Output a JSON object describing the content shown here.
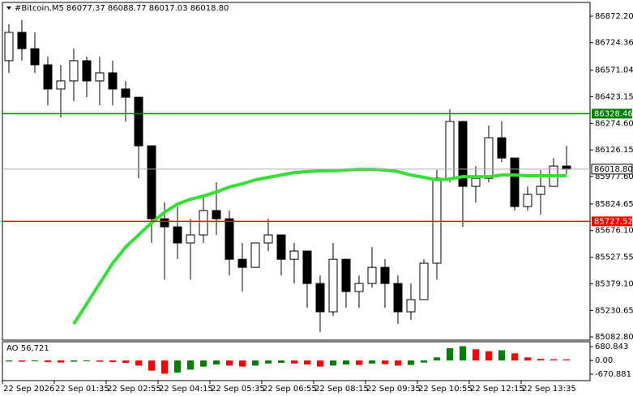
{
  "chart_data": [
    {
      "type": "candlestick",
      "title": "#Bitcoin,M5  86077.37 86088.77 86017.03 86018.80",
      "categories": [
        "22 Sep 2026",
        null,
        null,
        null,
        "22 Sep 01:35",
        null,
        null,
        null,
        "22 Sep 02:55",
        null,
        null,
        null,
        "22 Sep 04:15",
        null,
        null,
        null,
        "22 Sep 05:35",
        null,
        null,
        null,
        "22 Sep 06:55",
        null,
        null,
        null,
        "22 Sep 08:15",
        null,
        null,
        null,
        "22 Sep 09:35",
        null,
        null,
        null,
        "22 Sep 10:55",
        null,
        null,
        null,
        "22 Sep 12:15",
        null,
        null,
        null,
        "22 Sep 13:35",
        null,
        null,
        null
      ],
      "open": [
        86624,
        86782,
        86691,
        86601,
        86466,
        86511,
        86624,
        86511,
        86556,
        86466,
        86420,
        86149,
        85742,
        85697,
        85607,
        85652,
        85788,
        85742,
        85516,
        85471,
        85607,
        85652,
        85516,
        85562,
        85381,
        85223,
        85516,
        85336,
        85381,
        85471,
        85381,
        85223,
        85291,
        85494,
        85968,
        86285,
        85923,
        85968,
        86194,
        86081,
        85810,
        85878,
        85923,
        86036
      ],
      "high": [
        86827,
        86850,
        86782,
        86646,
        86601,
        86691,
        86646,
        86646,
        86624,
        86511,
        86420,
        86149,
        85833,
        85810,
        85742,
        85878,
        85946,
        85788,
        85607,
        85607,
        85742,
        85652,
        85607,
        85562,
        85426,
        85607,
        85516,
        85426,
        85584,
        85516,
        85426,
        85381,
        85516,
        86014,
        86352,
        86285,
        86036,
        86262,
        86285,
        86081,
        85923,
        86014,
        86081,
        86149
      ],
      "low": [
        86556,
        86624,
        86556,
        86375,
        86307,
        86398,
        86420,
        86375,
        86375,
        86285,
        85968,
        85607,
        85403,
        85516,
        85403,
        85607,
        85652,
        85426,
        85336,
        85471,
        85562,
        85426,
        85381,
        85245,
        85110,
        85200,
        85245,
        85245,
        85358,
        85245,
        85155,
        85178,
        85291,
        85403,
        85946,
        85697,
        85833,
        85946,
        86059,
        85788,
        85788,
        85765,
        85923,
        85991
      ],
      "close": [
        86782,
        86691,
        86601,
        86466,
        86511,
        86624,
        86511,
        86556,
        86466,
        86420,
        86149,
        85742,
        85697,
        85607,
        85652,
        85788,
        85742,
        85516,
        85471,
        85607,
        85652,
        85516,
        85562,
        85381,
        85223,
        85516,
        85336,
        85381,
        85471,
        85381,
        85223,
        85291,
        85494,
        85968,
        86285,
        85923,
        85968,
        86194,
        86081,
        85810,
        85878,
        85923,
        86036,
        86018.8
      ],
      "up_color": "#ffffff",
      "down_color": "#000000",
      "series": [
        {
          "color": "#33e033",
          "values": [
            null,
            null,
            null,
            null,
            null,
            85155,
            85268,
            85381,
            85494,
            85584,
            85652,
            85720,
            85778,
            85824,
            85851,
            85869,
            85892,
            85919,
            85937,
            85959,
            85973,
            85986,
            86000,
            86005,
            86009,
            86009,
            86014,
            86018,
            86018,
            86014,
            86005,
            85986,
            85973,
            85959,
            85964,
            85977,
            85977,
            85977,
            85986,
            85986,
            85982,
            85982,
            85982,
            85982
          ]
        }
      ],
      "levels": [
        {
          "value": 86328.46,
          "color": "#008000"
        },
        {
          "value": 85727.52,
          "color": "#ff0000"
        }
      ],
      "current": {
        "value": 86018.8,
        "label": "86018.80"
      },
      "ylim": [
        85065,
        86949
      ],
      "yticks": [
        {
          "value": 86872.2,
          "label": "86872.20"
        },
        {
          "value": 86724.36,
          "label": "86724.36"
        },
        {
          "value": 86571.04,
          "label": "86571.04"
        },
        {
          "value": 86423.15,
          "label": "86423.15"
        },
        {
          "value": 86274.6,
          "label": "86274.60"
        },
        {
          "value": 86126.15,
          "label": "86126.15"
        },
        {
          "value": 85977.6,
          "label": "85977.60"
        },
        {
          "value": 85824.65,
          "label": "85824.65"
        },
        {
          "value": 85676.1,
          "label": "85676.10"
        },
        {
          "value": 85527.55,
          "label": "85527.55"
        },
        {
          "value": 85379.1,
          "label": "85379.10"
        },
        {
          "value": 85230.65,
          "label": "85230.65"
        },
        {
          "value": 85082.8,
          "label": "85082.80"
        }
      ]
    },
    {
      "type": "bar",
      "title": "AO 56,721",
      "values": [
        -50,
        -60,
        -40,
        -80,
        -100,
        -60,
        -40,
        -60,
        -80,
        -120,
        -250,
        -500,
        -650,
        -600,
        -450,
        -300,
        -200,
        -250,
        -300,
        -250,
        -150,
        -120,
        -150,
        -200,
        -300,
        -250,
        -200,
        -220,
        -150,
        -180,
        -250,
        -220,
        -100,
        150,
        600,
        700,
        550,
        450,
        500,
        350,
        150,
        80,
        60,
        56.721
      ],
      "up_color": "#008000",
      "down_color": "#ff0000",
      "ylim": [
        -989,
        919
      ],
      "yticks": [
        {
          "value": 680.843,
          "label": "680.843"
        },
        {
          "value": 0,
          "label": "0.00"
        },
        {
          "value": -670.881,
          "label": "-670.881"
        }
      ]
    }
  ]
}
